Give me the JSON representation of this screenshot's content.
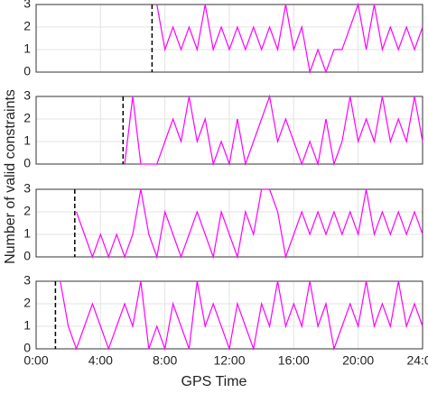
{
  "chart_data": [
    {
      "type": "line",
      "color": "#ff00ff",
      "grid": true,
      "marker_x": 7.2,
      "x": [
        0,
        0.5,
        1,
        1.5,
        2,
        2.5,
        3,
        3.5,
        4,
        4.5,
        5,
        5.5,
        6,
        6.5,
        7,
        7.5,
        8,
        8.5,
        9,
        9.5,
        10,
        10.5,
        11,
        11.5,
        12,
        12.5,
        13,
        13.5,
        14,
        14.5,
        15,
        15.5,
        16,
        16.5,
        17,
        17.5,
        18,
        18.5,
        19,
        19.5,
        20,
        20.5,
        21,
        21.5,
        22,
        22.5,
        23,
        23.5,
        24
      ],
      "values": [
        null,
        null,
        null,
        null,
        null,
        null,
        null,
        null,
        null,
        null,
        null,
        null,
        null,
        null,
        null,
        3,
        1,
        2,
        1,
        2,
        1,
        3,
        1,
        2,
        1,
        2,
        1,
        2,
        1,
        2,
        1,
        3,
        1,
        2,
        0,
        1,
        0,
        1,
        1,
        2,
        3,
        1,
        3,
        1,
        2,
        1,
        2,
        1,
        2
      ],
      "xlim": [
        0,
        24
      ],
      "ylim": [
        0,
        3
      ],
      "yticks": [
        0,
        1,
        2,
        3
      ]
    },
    {
      "type": "line",
      "color": "#ff00ff",
      "grid": true,
      "marker_x": 5.4,
      "x": [
        0,
        0.5,
        1,
        1.5,
        2,
        2.5,
        3,
        3.5,
        4,
        4.5,
        5,
        5.5,
        6,
        6.5,
        7,
        7.5,
        8,
        8.5,
        9,
        9.5,
        10,
        10.5,
        11,
        11.5,
        12,
        12.5,
        13,
        13.5,
        14,
        14.5,
        15,
        15.5,
        16,
        16.5,
        17,
        17.5,
        18,
        18.5,
        19,
        19.5,
        20,
        20.5,
        21,
        21.5,
        22,
        22.5,
        23,
        23.5,
        24
      ],
      "values": [
        null,
        null,
        null,
        null,
        null,
        null,
        null,
        null,
        null,
        null,
        null,
        0,
        3,
        0,
        0,
        0,
        1,
        2,
        1,
        3,
        1,
        2,
        0,
        1,
        0,
        2,
        0,
        1,
        2,
        3,
        1,
        2,
        1,
        0,
        1,
        0,
        2,
        0,
        1,
        3,
        1,
        2,
        1,
        3,
        1,
        2,
        1,
        3,
        1
      ],
      "xlim": [
        0,
        24
      ],
      "ylim": [
        0,
        3
      ],
      "yticks": [
        0,
        1,
        2,
        3
      ]
    },
    {
      "type": "line",
      "color": "#ff00ff",
      "grid": true,
      "marker_x": 2.4,
      "x": [
        0,
        0.5,
        1,
        1.5,
        2,
        2.5,
        3,
        3.5,
        4,
        4.5,
        5,
        5.5,
        6,
        6.5,
        7,
        7.5,
        8,
        8.5,
        9,
        9.5,
        10,
        10.5,
        11,
        11.5,
        12,
        12.5,
        13,
        13.5,
        14,
        14.5,
        15,
        15.5,
        16,
        16.5,
        17,
        17.5,
        18,
        18.5,
        19,
        19.5,
        20,
        20.5,
        21,
        21.5,
        22,
        22.5,
        23,
        23.5,
        24
      ],
      "values": [
        null,
        null,
        null,
        null,
        null,
        2,
        1,
        0,
        1,
        0,
        1,
        0,
        1,
        3,
        1,
        0,
        2,
        1,
        0,
        1,
        2,
        1,
        0,
        2,
        1,
        0,
        2,
        1,
        3,
        3,
        2,
        0,
        1,
        2,
        1,
        2,
        1,
        2,
        1,
        2,
        1,
        3,
        1,
        2,
        1,
        2,
        1,
        2,
        1
      ],
      "xlim": [
        0,
        24
      ],
      "ylim": [
        0,
        3
      ],
      "yticks": [
        0,
        1,
        2,
        3
      ]
    },
    {
      "type": "line",
      "color": "#ff00ff",
      "grid": true,
      "marker_x": 1.2,
      "x": [
        0,
        0.5,
        1,
        1.5,
        2,
        2.5,
        3,
        3.5,
        4,
        4.5,
        5,
        5.5,
        6,
        6.5,
        7,
        7.5,
        8,
        8.5,
        9,
        9.5,
        10,
        10.5,
        11,
        11.5,
        12,
        12.5,
        13,
        13.5,
        14,
        14.5,
        15,
        15.5,
        16,
        16.5,
        17,
        17.5,
        18,
        18.5,
        19,
        19.5,
        20,
        20.5,
        21,
        21.5,
        22,
        22.5,
        23,
        23.5,
        24
      ],
      "values": [
        null,
        null,
        null,
        3,
        1,
        0,
        1,
        2,
        1,
        0,
        1,
        2,
        1,
        3,
        0,
        1,
        0,
        2,
        1,
        0,
        3,
        1,
        2,
        1,
        0,
        2,
        1,
        0,
        2,
        1,
        3,
        1,
        2,
        1,
        3,
        1,
        2,
        0,
        1,
        2,
        1,
        3,
        1,
        2,
        1,
        3,
        1,
        2,
        1
      ],
      "xlim": [
        0,
        24
      ],
      "ylim": [
        0,
        3
      ],
      "yticks": [
        0,
        1,
        2,
        3
      ],
      "xticks": [
        {
          "value": 0,
          "label": "0:00"
        },
        {
          "value": 4,
          "label": "4:00"
        },
        {
          "value": 8,
          "label": "8:00"
        },
        {
          "value": 12,
          "label": "12:00"
        },
        {
          "value": 16,
          "label": "16:00"
        },
        {
          "value": 20,
          "label": "20:00"
        },
        {
          "value": 24,
          "label": "24:00"
        }
      ]
    }
  ],
  "xlabel": "GPS Time",
  "ylabel": "Number of valid constraints"
}
